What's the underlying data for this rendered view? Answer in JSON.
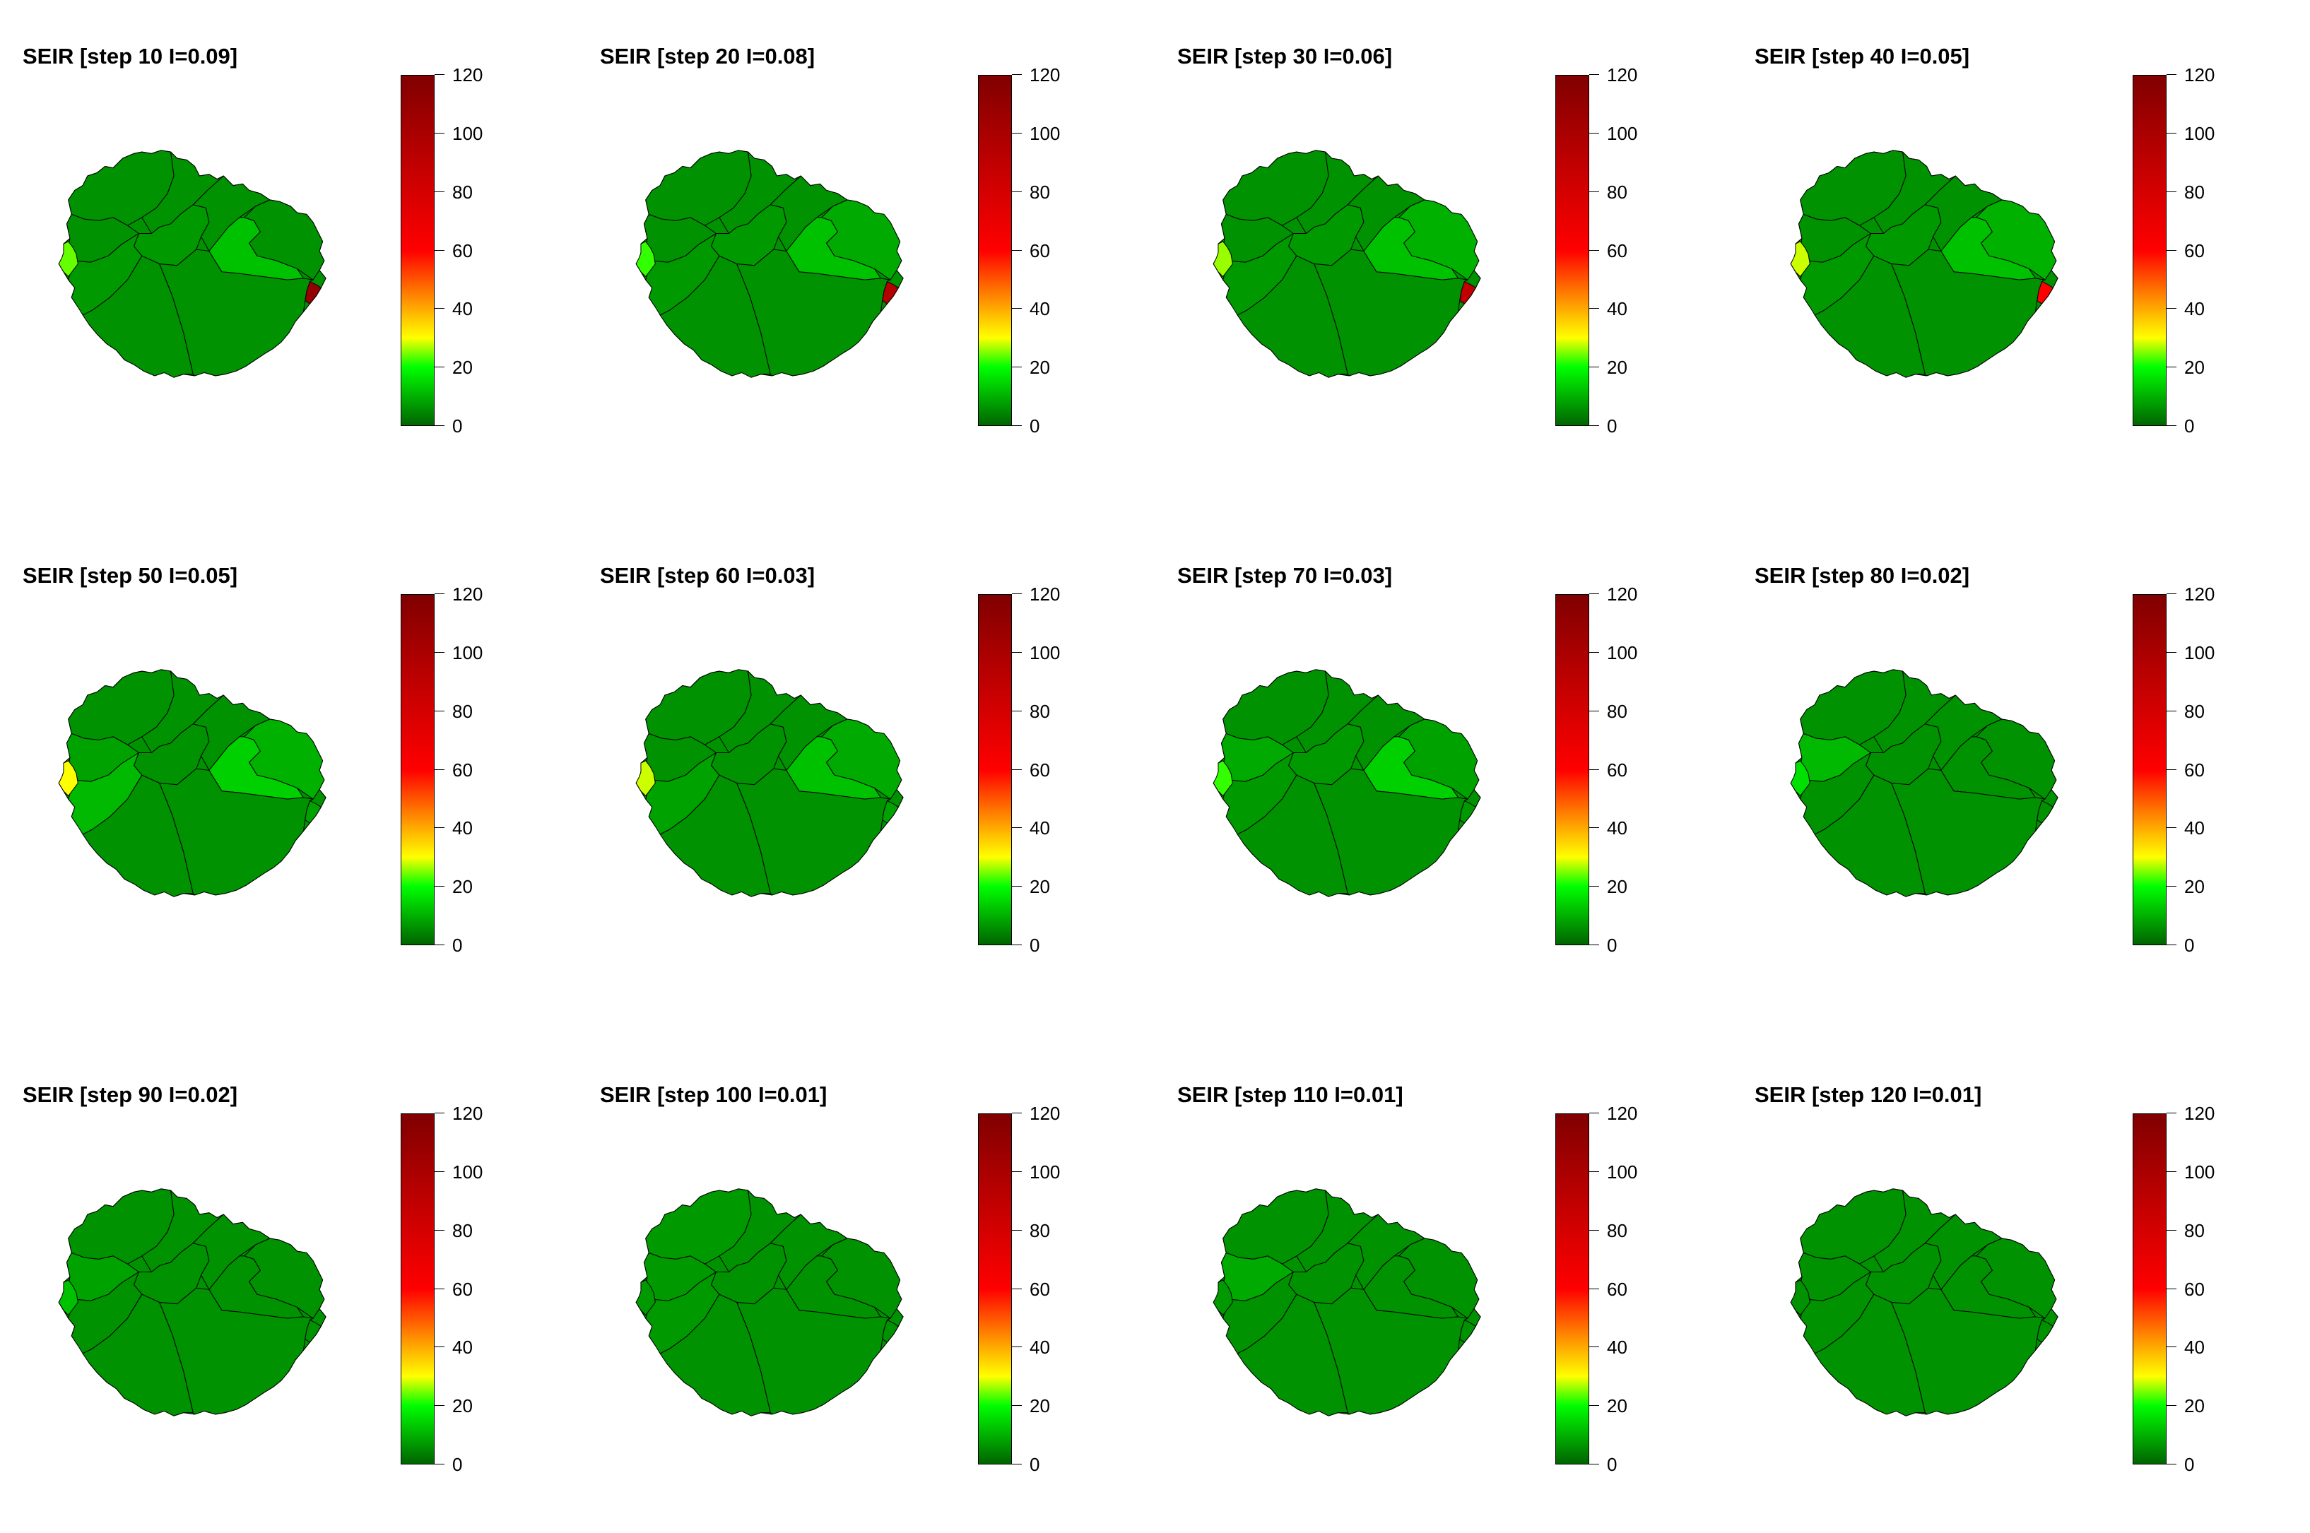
{
  "chart_data": [
    {
      "type": "choropleth",
      "title": "SEIR [step 10 I=0.09]",
      "colorbar": {
        "min": 0,
        "max": 120,
        "ticks": [
          0,
          20,
          40,
          60,
          80,
          100,
          120
        ],
        "colormap": [
          "#006400",
          "#00ff00",
          "#ffff00",
          "#ff0000",
          "#800000"
        ]
      },
      "regions": {
        "r0": 6,
        "r1": 6,
        "r2": 6,
        "r3": 7,
        "r4": 7,
        "r5": 6,
        "r6": 6,
        "r7": 6,
        "r8": 12,
        "r9": 24,
        "r10": 110
      }
    },
    {
      "type": "choropleth",
      "title": "SEIR [step 20 I=0.08]",
      "colorbar": {
        "min": 0,
        "max": 120,
        "ticks": [
          0,
          20,
          40,
          60,
          80,
          100,
          120
        ],
        "colormap": [
          "#006400",
          "#00ff00",
          "#ffff00",
          "#ff0000",
          "#800000"
        ]
      },
      "regions": {
        "r0": 6,
        "r1": 6,
        "r2": 6,
        "r3": 7,
        "r4": 7,
        "r5": 6,
        "r6": 6,
        "r7": 9,
        "r8": 12,
        "r9": 22,
        "r10": 95
      }
    },
    {
      "type": "choropleth",
      "title": "SEIR [step 30 I=0.06]",
      "colorbar": {
        "min": 0,
        "max": 120,
        "ticks": [
          0,
          20,
          40,
          60,
          80,
          100,
          120
        ],
        "colormap": [
          "#006400",
          "#00ff00",
          "#ffff00",
          "#ff0000",
          "#800000"
        ]
      },
      "regions": {
        "r0": 6,
        "r1": 6,
        "r2": 6,
        "r3": 7,
        "r4": 7,
        "r5": 6,
        "r6": 6,
        "r7": 10,
        "r8": 12,
        "r9": 26,
        "r10": 90
      }
    },
    {
      "type": "choropleth",
      "title": "SEIR [step 40 I=0.05]",
      "colorbar": {
        "min": 0,
        "max": 120,
        "ticks": [
          0,
          20,
          40,
          60,
          80,
          100,
          120
        ],
        "colormap": [
          "#006400",
          "#00ff00",
          "#ffff00",
          "#ff0000",
          "#800000"
        ]
      },
      "regions": {
        "r0": 6,
        "r1": 6,
        "r2": 6,
        "r3": 7,
        "r4": 7,
        "r5": 6,
        "r6": 6,
        "r7": 10,
        "r8": 12,
        "r9": 28,
        "r10": 60
      }
    },
    {
      "type": "choropleth",
      "title": "SEIR [step 50 I=0.05]",
      "colorbar": {
        "min": 0,
        "max": 120,
        "ticks": [
          0,
          20,
          40,
          60,
          80,
          100,
          120
        ],
        "colormap": [
          "#006400",
          "#00ff00",
          "#ffff00",
          "#ff0000",
          "#800000"
        ]
      },
      "regions": {
        "r0": 6,
        "r1": 6,
        "r2": 8,
        "r3": 6,
        "r4": 11,
        "r5": 6,
        "r6": 6,
        "r7": 10,
        "r8": 14,
        "r9": 30,
        "r10": 8
      }
    },
    {
      "type": "choropleth",
      "title": "SEIR [step 60 I=0.03]",
      "colorbar": {
        "min": 0,
        "max": 120,
        "ticks": [
          0,
          20,
          40,
          60,
          80,
          100,
          120
        ],
        "colormap": [
          "#006400",
          "#00ff00",
          "#ffff00",
          "#ff0000",
          "#800000"
        ]
      },
      "regions": {
        "r0": 6,
        "r1": 6,
        "r2": 6,
        "r3": 6,
        "r4": 8,
        "r5": 6,
        "r6": 6,
        "r7": 9,
        "r8": 12,
        "r9": 28,
        "r10": 8
      }
    },
    {
      "type": "choropleth",
      "title": "SEIR [step 70 I=0.03]",
      "colorbar": {
        "min": 0,
        "max": 120,
        "ticks": [
          0,
          20,
          40,
          60,
          80,
          100,
          120
        ],
        "colormap": [
          "#006400",
          "#00ff00",
          "#ffff00",
          "#ff0000",
          "#800000"
        ]
      },
      "regions": {
        "r0": 6,
        "r1": 6,
        "r2": 9,
        "r3": 7,
        "r4": 7,
        "r5": 6,
        "r6": 6,
        "r7": 8,
        "r8": 14,
        "r9": 22,
        "r10": 7
      }
    },
    {
      "type": "choropleth",
      "title": "SEIR [step 80 I=0.02]",
      "colorbar": {
        "min": 0,
        "max": 120,
        "ticks": [
          0,
          20,
          40,
          60,
          80,
          100,
          120
        ],
        "colormap": [
          "#006400",
          "#00ff00",
          "#ffff00",
          "#ff0000",
          "#800000"
        ]
      },
      "regions": {
        "r0": 6,
        "r1": 6,
        "r2": 11,
        "r3": 6,
        "r4": 6,
        "r5": 6,
        "r6": 6,
        "r7": 6,
        "r8": 6,
        "r9": 16,
        "r10": 6
      }
    },
    {
      "type": "choropleth",
      "title": "SEIR [step 90 I=0.02]",
      "colorbar": {
        "min": 0,
        "max": 120,
        "ticks": [
          0,
          20,
          40,
          60,
          80,
          100,
          120
        ],
        "colormap": [
          "#006400",
          "#00ff00",
          "#ffff00",
          "#ff0000",
          "#800000"
        ]
      },
      "regions": {
        "r0": 6,
        "r1": 6,
        "r2": 8,
        "r3": 6,
        "r4": 6,
        "r5": 6,
        "r6": 6,
        "r7": 6,
        "r8": 6,
        "r9": 12,
        "r10": 6
      }
    },
    {
      "type": "choropleth",
      "title": "SEIR [step 100 I=0.01]",
      "colorbar": {
        "min": 0,
        "max": 120,
        "ticks": [
          0,
          20,
          40,
          60,
          80,
          100,
          120
        ],
        "colormap": [
          "#006400",
          "#00ff00",
          "#ffff00",
          "#ff0000",
          "#800000"
        ]
      },
      "regions": {
        "r0": 7,
        "r1": 6,
        "r2": 7,
        "r3": 6,
        "r4": 7,
        "r5": 6,
        "r6": 6,
        "r7": 6,
        "r8": 6,
        "r9": 7,
        "r10": 6
      }
    },
    {
      "type": "choropleth",
      "title": "SEIR [step 110 I=0.01]",
      "colorbar": {
        "min": 0,
        "max": 120,
        "ticks": [
          0,
          20,
          40,
          60,
          80,
          100,
          120
        ],
        "colormap": [
          "#006400",
          "#00ff00",
          "#ffff00",
          "#ff0000",
          "#800000"
        ]
      },
      "regions": {
        "r0": 6,
        "r1": 6,
        "r2": 9,
        "r3": 6,
        "r4": 6,
        "r5": 6,
        "r6": 6,
        "r7": 6,
        "r8": 6,
        "r9": 7,
        "r10": 6
      }
    },
    {
      "type": "choropleth",
      "title": "SEIR [step 120 I=0.01]",
      "colorbar": {
        "min": 0,
        "max": 120,
        "ticks": [
          0,
          20,
          40,
          60,
          80,
          100,
          120
        ],
        "colormap": [
          "#006400",
          "#00ff00",
          "#ffff00",
          "#ff0000",
          "#800000"
        ]
      },
      "regions": {
        "r0": 6,
        "r1": 6,
        "r2": 6,
        "r3": 6,
        "r4": 6,
        "r5": 6,
        "r6": 6,
        "r7": 6,
        "r8": 6,
        "r9": 6,
        "r10": 6
      }
    }
  ]
}
